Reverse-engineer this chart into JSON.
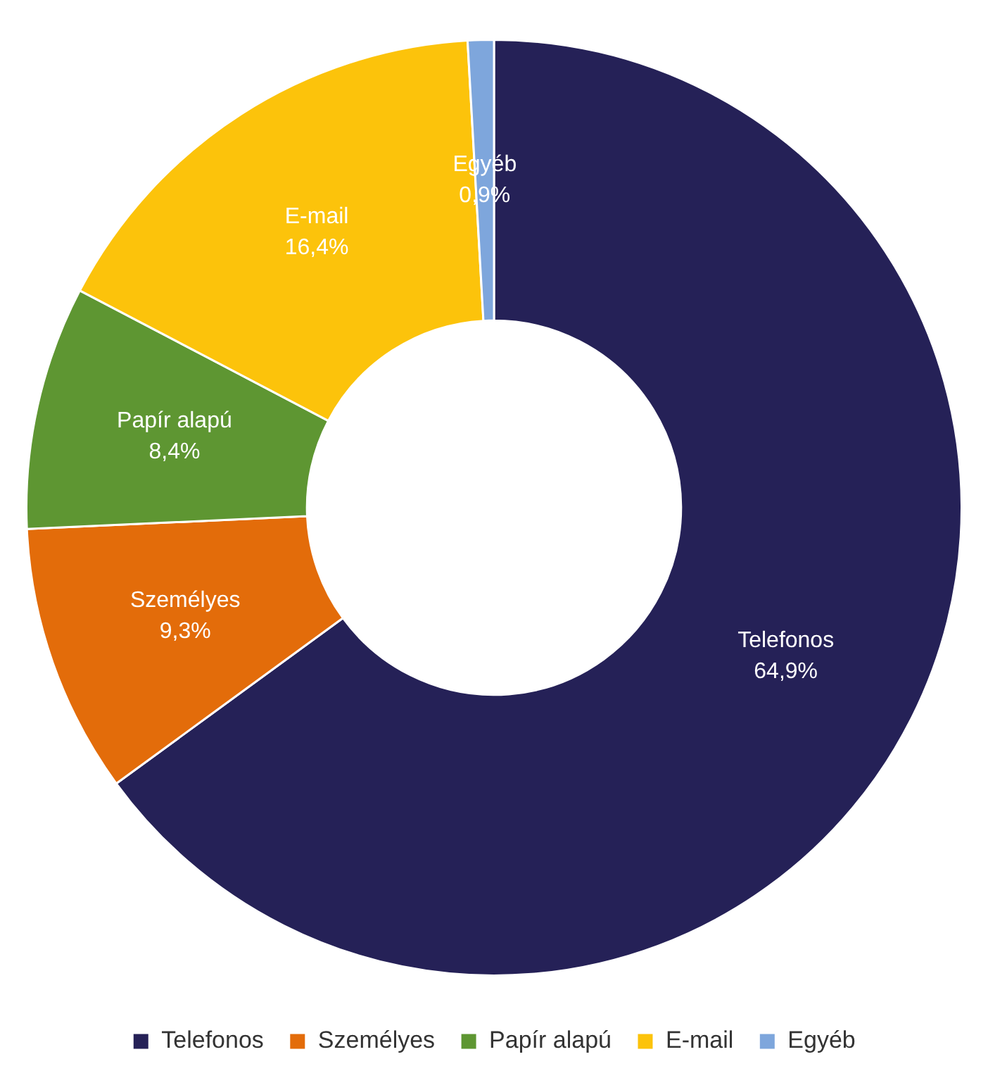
{
  "chart_data": {
    "type": "donut",
    "categories": [
      "Telefonos",
      "Személyes",
      "Papír alapú",
      "E-mail",
      "Egyéb"
    ],
    "values": [
      64.9,
      9.3,
      8.4,
      16.4,
      0.9
    ],
    "value_labels": [
      "64,9%",
      "9,3%",
      "8,4%",
      "16,4%",
      "0,9%"
    ],
    "colors": [
      "#252157",
      "#e36c0a",
      "#5e9632",
      "#fcc30b",
      "#7ea6dc"
    ],
    "legend": "bottom"
  }
}
